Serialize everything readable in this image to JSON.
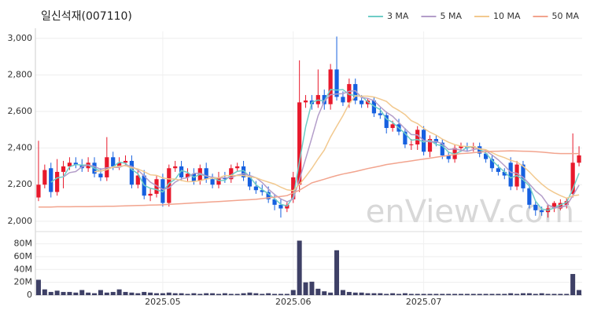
{
  "chart_data": {
    "type": "candlestick",
    "title": "일신석재(007110)",
    "watermark": "enViewV.com",
    "legend_position": "top-right",
    "up_color": "#e8192c",
    "down_color": "#1660e0",
    "grid": true,
    "categories": [
      null,
      null,
      null,
      null,
      null,
      null,
      null,
      null,
      null,
      null,
      null,
      null,
      null,
      null,
      null,
      null,
      null,
      null,
      null,
      null,
      "2025.05",
      null,
      null,
      null,
      null,
      null,
      null,
      null,
      null,
      null,
      null,
      null,
      null,
      null,
      null,
      null,
      null,
      null,
      null,
      null,
      null,
      "2025.06",
      null,
      null,
      null,
      null,
      null,
      null,
      null,
      null,
      null,
      null,
      null,
      null,
      null,
      null,
      null,
      null,
      null,
      null,
      null,
      null,
      "2025.07",
      null,
      null,
      null,
      null,
      null,
      null,
      null,
      null,
      null,
      null,
      null,
      null,
      null,
      null,
      null,
      null,
      null,
      null,
      null,
      null,
      null,
      null,
      null,
      null,
      null
    ],
    "open": [
      2130,
      2200,
      2290,
      2160,
      2270,
      2300,
      2320,
      2310,
      2290,
      2320,
      2260,
      2240,
      2350,
      2300,
      2320,
      2330,
      2200,
      2250,
      2140,
      2150,
      2230,
      2100,
      2290,
      2300,
      2240,
      2260,
      2220,
      2290,
      2230,
      2200,
      2240,
      2230,
      2290,
      2300,
      2240,
      2190,
      2170,
      2160,
      2120,
      2090,
      2070,
      2120,
      2200,
      2650,
      2660,
      2640,
      2690,
      2640,
      2830,
      2680,
      2650,
      2750,
      2660,
      2640,
      2660,
      2590,
      2580,
      2510,
      2530,
      2490,
      2420,
      2420,
      2500,
      2380,
      2450,
      2430,
      2360,
      2340,
      2400,
      2410,
      2400,
      2410,
      2370,
      2340,
      2290,
      2270,
      2320,
      2190,
      2310,
      2180,
      2090,
      2060,
      2050,
      2070,
      2070,
      2090,
      2150,
      2320
    ],
    "high": [
      2440,
      2310,
      2320,
      2340,
      2330,
      2350,
      2350,
      2340,
      2350,
      2350,
      2290,
      2460,
      2380,
      2350,
      2360,
      2360,
      2280,
      2280,
      2180,
      2250,
      2260,
      2310,
      2330,
      2330,
      2290,
      2290,
      2310,
      2320,
      2260,
      2270,
      2270,
      2310,
      2320,
      2330,
      2270,
      2220,
      2200,
      2190,
      2150,
      2120,
      2110,
      2270,
      2880,
      2690,
      2690,
      2830,
      2720,
      2860,
      3010,
      2710,
      2780,
      2780,
      2690,
      2670,
      2680,
      2620,
      2600,
      2550,
      2560,
      2510,
      2450,
      2520,
      2520,
      2470,
      2470,
      2450,
      2380,
      2420,
      2430,
      2430,
      2430,
      2430,
      2390,
      2360,
      2310,
      2290,
      2350,
      2330,
      2330,
      2200,
      2110,
      2080,
      2090,
      2110,
      2120,
      2130,
      2480,
      2410
    ],
    "low": [
      2110,
      2180,
      2130,
      2140,
      2180,
      2280,
      2290,
      2270,
      2270,
      2240,
      2220,
      2220,
      2280,
      2280,
      2300,
      2180,
      2180,
      2120,
      2110,
      2130,
      2080,
      2080,
      2270,
      2220,
      2220,
      2200,
      2200,
      2210,
      2180,
      2180,
      2210,
      2210,
      2270,
      2220,
      2170,
      2150,
      2140,
      2100,
      2060,
      2020,
      2050,
      2100,
      2160,
      2620,
      2610,
      2620,
      2610,
      2610,
      2660,
      2630,
      2620,
      2640,
      2620,
      2620,
      2570,
      2560,
      2480,
      2490,
      2470,
      2400,
      2390,
      2390,
      2360,
      2350,
      2410,
      2340,
      2320,
      2320,
      2380,
      2380,
      2380,
      2350,
      2320,
      2270,
      2250,
      2230,
      2170,
      2170,
      2160,
      2070,
      2030,
      2030,
      2020,
      2050,
      2060,
      2070,
      2130,
      2300
    ],
    "close": [
      2200,
      2280,
      2160,
      2270,
      2300,
      2320,
      2310,
      2290,
      2320,
      2260,
      2240,
      2350,
      2300,
      2320,
      2330,
      2200,
      2250,
      2140,
      2150,
      2230,
      2100,
      2290,
      2300,
      2240,
      2260,
      2220,
      2290,
      2230,
      2200,
      2240,
      2230,
      2290,
      2300,
      2240,
      2190,
      2170,
      2160,
      2120,
      2090,
      2070,
      2090,
      2240,
      2650,
      2660,
      2640,
      2690,
      2640,
      2830,
      2680,
      2650,
      2750,
      2660,
      2640,
      2660,
      2590,
      2580,
      2510,
      2530,
      2490,
      2420,
      2420,
      2500,
      2380,
      2450,
      2430,
      2360,
      2340,
      2400,
      2410,
      2400,
      2410,
      2370,
      2340,
      2290,
      2270,
      2250,
      2190,
      2310,
      2180,
      2090,
      2060,
      2050,
      2070,
      2100,
      2100,
      2110,
      2320,
      2360
    ],
    "ylim": [
      1965,
      3038
    ],
    "yticks": [
      {
        "value": 2000,
        "label": "2,000"
      },
      {
        "value": 2200,
        "label": "2,200"
      },
      {
        "value": 2400,
        "label": "2,400"
      },
      {
        "value": 2600,
        "label": "2,600"
      },
      {
        "value": 2800,
        "label": "2,800"
      },
      {
        "value": 3000,
        "label": "3,000"
      }
    ],
    "series": [
      {
        "name": "3 MA",
        "color": "#6fcdc6",
        "values": [
          null,
          null,
          2213,
          2237,
          2243,
          2297,
          2310,
          2307,
          2307,
          2290,
          2273,
          2283,
          2297,
          2323,
          2317,
          2283,
          2260,
          2197,
          2180,
          2173,
          2160,
          2207,
          2230,
          2277,
          2267,
          2240,
          2257,
          2247,
          2240,
          2223,
          2223,
          2253,
          2273,
          2277,
          2243,
          2200,
          2173,
          2150,
          2123,
          2093,
          2083,
          2133,
          2327,
          2517,
          2650,
          2663,
          2657,
          2720,
          2717,
          2720,
          2693,
          2687,
          2683,
          2653,
          2630,
          2610,
          2560,
          2540,
          2510,
          2480,
          2443,
          2447,
          2433,
          2443,
          2420,
          2413,
          2377,
          2367,
          2383,
          2403,
          2407,
          2393,
          2373,
          2333,
          2300,
          2270,
          2237,
          2250,
          2227,
          2193,
          2110,
          2067,
          2060,
          2073,
          2090,
          2103,
          2177,
          2263
        ]
      },
      {
        "name": "5 MA",
        "color": "#b39dc9",
        "values": [
          null,
          null,
          null,
          null,
          2242,
          2266,
          2272,
          2298,
          2308,
          2300,
          2284,
          2292,
          2294,
          2294,
          2308,
          2300,
          2280,
          2248,
          2214,
          2194,
          2174,
          2182,
          2214,
          2232,
          2238,
          2262,
          2262,
          2248,
          2240,
          2236,
          2238,
          2238,
          2252,
          2260,
          2250,
          2238,
          2212,
          2176,
          2146,
          2122,
          2106,
          2122,
          2228,
          2342,
          2456,
          2576,
          2656,
          2692,
          2696,
          2698,
          2710,
          2714,
          2676,
          2672,
          2660,
          2626,
          2596,
          2574,
          2540,
          2506,
          2474,
          2472,
          2442,
          2434,
          2436,
          2424,
          2392,
          2396,
          2388,
          2382,
          2392,
          2398,
          2386,
          2362,
          2336,
          2304,
          2268,
          2262,
          2240,
          2204,
          2166,
          2138,
          2090,
          2074,
          2076,
          2086,
          2140,
          2198
        ]
      },
      {
        "name": "10 MA",
        "color": "#f2c98f",
        "values": [
          null,
          null,
          null,
          null,
          null,
          null,
          null,
          null,
          null,
          2271,
          2275,
          2282,
          2296,
          2301,
          2304,
          2292,
          2286,
          2271,
          2254,
          2251,
          2237,
          2231,
          2231,
          2223,
          2216,
          2218,
          2222,
          2231,
          2236,
          2237,
          2250,
          2250,
          2250,
          2250,
          2243,
          2238,
          2225,
          2214,
          2203,
          2186,
          2172,
          2167,
          2202,
          2244,
          2289,
          2341,
          2389,
          2460,
          2519,
          2577,
          2643,
          2685,
          2684,
          2684,
          2679,
          2668,
          2655,
          2625,
          2606,
          2583,
          2550,
          2534,
          2508,
          2487,
          2471,
          2449,
          2432,
          2419,
          2411,
          2409,
          2408,
          2395,
          2391,
          2375,
          2359,
          2348,
          2333,
          2324,
          2301,
          2270,
          2235,
          2203,
          2176,
          2157,
          2140,
          2126,
          2139,
          2144
        ]
      },
      {
        "name": "50 MA",
        "color": "#f2a48e",
        "values": [
          2078,
          2078,
          2078,
          2079,
          2079,
          2079,
          2080,
          2080,
          2080,
          2081,
          2081,
          2082,
          2082,
          2083,
          2084,
          2085,
          2086,
          2087,
          2088,
          2089,
          2090,
          2092,
          2094,
          2096,
          2098,
          2100,
          2102,
          2104,
          2106,
          2108,
          2110,
          2112,
          2114,
          2116,
          2118,
          2120,
          2124,
          2128,
          2132,
          2136,
          2140,
          2155,
          2170,
          2190,
          2210,
          2220,
          2230,
          2240,
          2250,
          2258,
          2265,
          2272,
          2280,
          2288,
          2295,
          2302,
          2310,
          2315,
          2320,
          2325,
          2330,
          2335,
          2340,
          2345,
          2350,
          2355,
          2360,
          2365,
          2370,
          2372,
          2375,
          2378,
          2380,
          2382,
          2383,
          2384,
          2385,
          2384,
          2383,
          2382,
          2380,
          2378,
          2375,
          2372,
          2370,
          2370,
          2370,
          2370
        ]
      }
    ],
    "volume": {
      "color": "#3e4066",
      "values": [
        24000000,
        9000000,
        5000000,
        7000000,
        5000000,
        5000000,
        4000000,
        8000000,
        4000000,
        3000000,
        8000000,
        4000000,
        5000000,
        9000000,
        5000000,
        4000000,
        3000000,
        5000000,
        4000000,
        3000000,
        3000000,
        4000000,
        3000000,
        3000000,
        2000000,
        3000000,
        2000000,
        3000000,
        3000000,
        2000000,
        3000000,
        2000000,
        2000000,
        3000000,
        4000000,
        3000000,
        2000000,
        3000000,
        2000000,
        2000000,
        2000000,
        8000000,
        85000000,
        20000000,
        21000000,
        10000000,
        6000000,
        4000000,
        70000000,
        8000000,
        5000000,
        4000000,
        4000000,
        3000000,
        3000000,
        3000000,
        2000000,
        3000000,
        2000000,
        3000000,
        2000000,
        2000000,
        2000000,
        2000000,
        2000000,
        2000000,
        2000000,
        2000000,
        2000000,
        2000000,
        2000000,
        2000000,
        2000000,
        2000000,
        2000000,
        2000000,
        3000000,
        2000000,
        3000000,
        3000000,
        2000000,
        3000000,
        2000000,
        2000000,
        2000000,
        2000000,
        33000000,
        8000000
      ],
      "ylim": [
        0,
        93000000
      ],
      "yticks": [
        0,
        {
          "value": 20000000,
          "label": "20M"
        },
        {
          "value": 40000000,
          "label": "40M"
        },
        {
          "value": 60000000,
          "label": "60M"
        },
        {
          "value": 80000000,
          "label": "80M"
        }
      ]
    }
  }
}
